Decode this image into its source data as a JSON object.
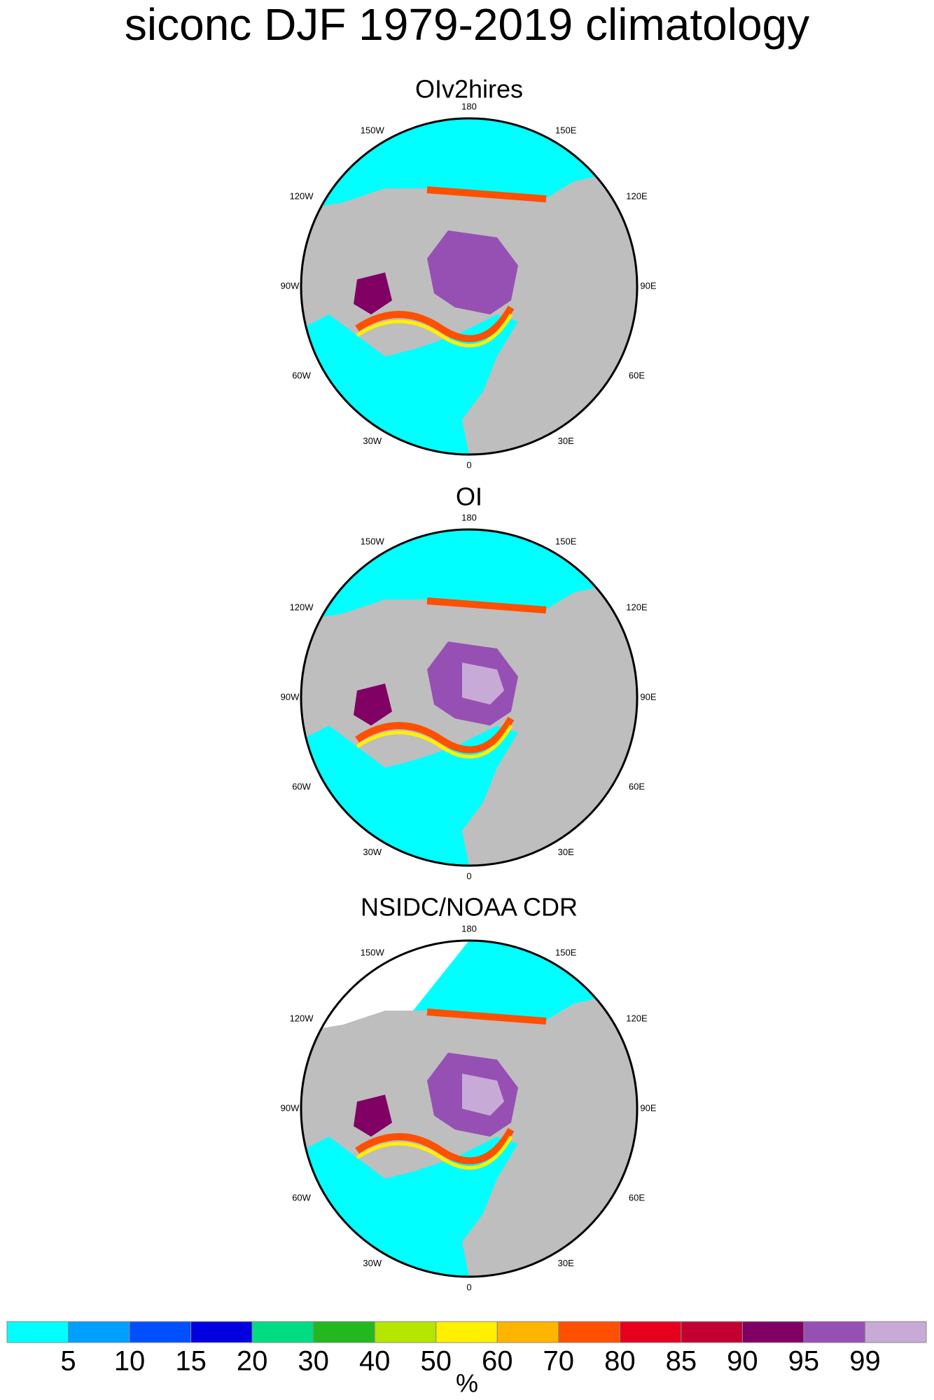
{
  "title": "siconc DJF 1979-2019 climatology",
  "panels": [
    {
      "title": "OIv2hires"
    },
    {
      "title": "OI"
    },
    {
      "title": "NSIDC/NOAA CDR"
    }
  ],
  "longitude_labels": [
    "180",
    "150E",
    "120E",
    "90E",
    "60E",
    "30E",
    "0",
    "30W",
    "60W",
    "90W",
    "120W",
    "150W"
  ],
  "colorbar": {
    "levels": [
      5,
      10,
      15,
      20,
      30,
      40,
      50,
      60,
      70,
      80,
      85,
      90,
      95,
      99
    ],
    "colors": [
      "#00ffff",
      "#00a0ff",
      "#0050ff",
      "#0000e0",
      "#00dc82",
      "#23b91e",
      "#b4e600",
      "#fff000",
      "#ffb400",
      "#ff5000",
      "#e6001e",
      "#c30032",
      "#800064",
      "#9650b4",
      "#c8aad7"
    ],
    "label": "%"
  }
}
